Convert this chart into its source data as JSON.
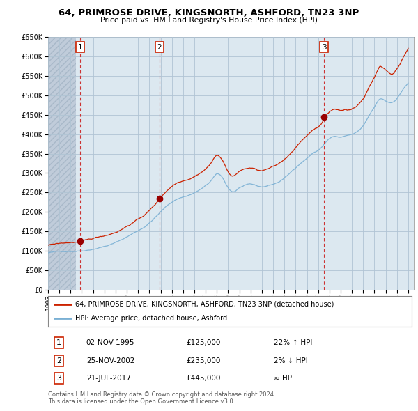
{
  "title": "64, PRIMROSE DRIVE, KINGSNORTH, ASHFORD, TN23 3NP",
  "subtitle": "Price paid vs. HM Land Registry's House Price Index (HPI)",
  "ylim": [
    0,
    650000
  ],
  "yticks": [
    0,
    50000,
    100000,
    150000,
    200000,
    250000,
    300000,
    350000,
    400000,
    450000,
    500000,
    550000,
    600000,
    650000
  ],
  "xlim_start": 1993.0,
  "xlim_end": 2025.5,
  "sale_dates": [
    1995.84,
    2002.9,
    2017.54
  ],
  "sale_prices": [
    125000,
    235000,
    445000
  ],
  "sale_labels": [
    "1",
    "2",
    "3"
  ],
  "hpi_color": "#7ab0d4",
  "sale_color": "#cc2200",
  "grid_color": "#c8d8e8",
  "chart_bg": "#dce8f0",
  "hatch_bg": "#c8d4dc",
  "bg_color": "#ffffff",
  "legend_line1": "64, PRIMROSE DRIVE, KINGSNORTH, ASHFORD, TN23 3NP (detached house)",
  "legend_line2": "HPI: Average price, detached house, Ashford",
  "table_rows": [
    [
      "1",
      "02-NOV-1995",
      "£125,000",
      "22% ↑ HPI"
    ],
    [
      "2",
      "25-NOV-2002",
      "£235,000",
      "2% ↓ HPI"
    ],
    [
      "3",
      "21-JUL-2017",
      "£445,000",
      "≈ HPI"
    ]
  ],
  "footer": "Contains HM Land Registry data © Crown copyright and database right 2024.\nThis data is licensed under the Open Government Licence v3.0.",
  "hpi_monthly_x": [],
  "hpi_monthly_y": []
}
